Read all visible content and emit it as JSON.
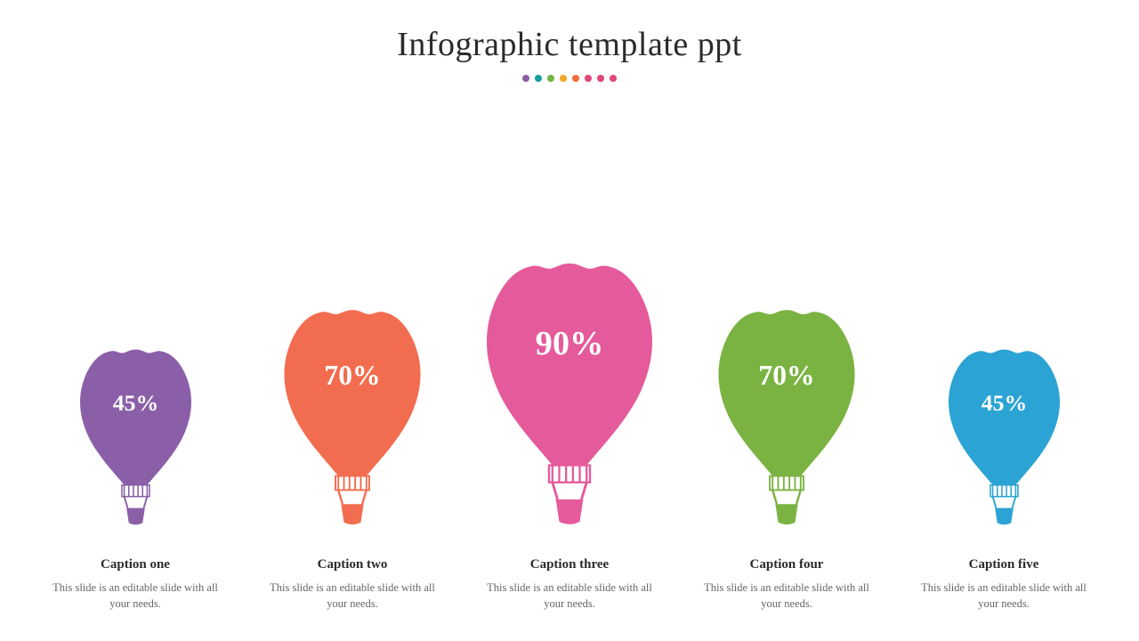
{
  "title": "Infographic template ppt",
  "title_fontsize": 38,
  "title_color": "#2b2b2b",
  "background_color": "#ffffff",
  "decorative_dots": [
    "#8b5fa8",
    "#1a9e9e",
    "#6fb644",
    "#f5a623",
    "#f26d3d",
    "#e0457b",
    "#e0457b",
    "#e0457b"
  ],
  "infographic": {
    "type": "infographic",
    "shape": "hot-air-balloon",
    "baseline_align": "bottom",
    "balloon_base_width": 150,
    "percent_text_color": "#ffffff",
    "percent_font_family": "Georgia, serif",
    "items": [
      {
        "percent": "45%",
        "value": 45,
        "color": "#8b5fa8",
        "scale": 0.86,
        "caption": "Caption one",
        "description": "This slide is an editable slide with all your needs."
      },
      {
        "percent": "70%",
        "value": 70,
        "color": "#f26d4f",
        "scale": 1.05,
        "caption": "Caption two",
        "description": "This slide is an editable slide with all your needs."
      },
      {
        "percent": "90%",
        "value": 90,
        "color": "#e55a9b",
        "scale": 1.28,
        "caption": "Caption three",
        "description": "This slide is an editable slide with all your needs."
      },
      {
        "percent": "70%",
        "value": 70,
        "color": "#7bb342",
        "scale": 1.05,
        "caption": "Caption four",
        "description": "This slide is an editable slide with all your needs."
      },
      {
        "percent": "45%",
        "value": 45,
        "color": "#2ba3d4",
        "scale": 0.86,
        "caption": "Caption five",
        "description": "This slide is an editable slide with all your needs."
      }
    ]
  },
  "caption_title_fontsize": 15,
  "caption_title_color": "#2b2b2b",
  "caption_desc_fontsize": 12.5,
  "caption_desc_color": "#666666"
}
